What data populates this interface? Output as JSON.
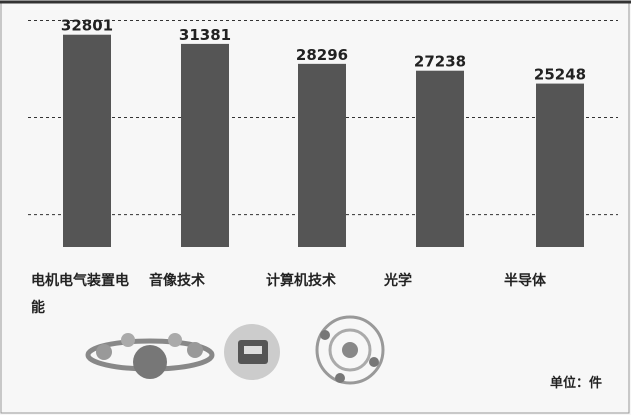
{
  "chart_data": {
    "type": "bar",
    "categories": [
      "电机电气装置电能",
      "音像技术",
      "计算机技术",
      "光学",
      "半导体"
    ],
    "values": [
      32801,
      31381,
      28296,
      27238,
      25248
    ],
    "color": "#555555",
    "ylim": [
      0,
      36000
    ],
    "gridlines": [
      5000,
      20000,
      35000
    ],
    "grid": true,
    "unit": "单位：件"
  }
}
